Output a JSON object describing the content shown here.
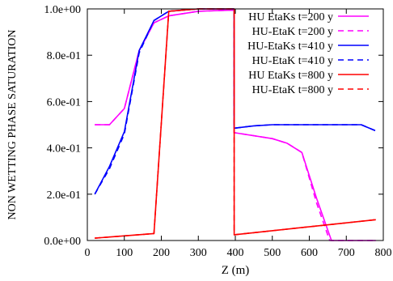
{
  "chart_data": {
    "type": "line",
    "xlabel": "Z (m)",
    "ylabel": "NON WETTING PHASE SATURATION",
    "xlim": [
      0,
      800
    ],
    "ylim": [
      0,
      1
    ],
    "xticks": [
      0,
      100,
      200,
      300,
      400,
      500,
      600,
      700,
      800
    ],
    "xtick_labels": [
      "0",
      "100",
      "200",
      "300",
      "400",
      "500",
      "600",
      "700",
      "800"
    ],
    "yticks": [
      0,
      0.2,
      0.4,
      0.6,
      0.8,
      1.0
    ],
    "ytick_labels": [
      "0.0e+00",
      "2.0e-01",
      "4.0e-01",
      "6.0e-01",
      "8.0e-01",
      "1.0e+00"
    ],
    "grid": false,
    "legend_position": "top-right",
    "series": [
      {
        "name": "HU EtaKs t=200 y",
        "color": "#ff00ff",
        "dash": "solid",
        "x": [
          20,
          60,
          100,
          140,
          180,
          220,
          300,
          397,
          397,
          400,
          500,
          540,
          580,
          620,
          660,
          780
        ],
        "y": [
          0.5,
          0.5,
          0.57,
          0.82,
          0.94,
          0.97,
          0.99,
          0.995,
          0.465,
          0.465,
          0.44,
          0.42,
          0.38,
          0.18,
          0.0,
          0.0
        ]
      },
      {
        "name": "HU-EtaK t=200 y",
        "color": "#ff00ff",
        "dash": "dashed",
        "x": [
          20,
          60,
          100,
          140,
          180,
          220,
          300,
          397,
          397,
          400,
          500,
          540,
          580,
          620,
          655,
          780
        ],
        "y": [
          0.5,
          0.5,
          0.57,
          0.82,
          0.94,
          0.97,
          0.99,
          0.995,
          0.465,
          0.465,
          0.44,
          0.42,
          0.38,
          0.16,
          0.0,
          0.0
        ]
      },
      {
        "name": "HU-EtaKs t=410 y",
        "color": "#0000ff",
        "dash": "solid",
        "x": [
          20,
          60,
          100,
          140,
          180,
          220,
          300,
          397,
          397,
          450,
          500,
          600,
          700,
          740,
          778
        ],
        "y": [
          0.2,
          0.32,
          0.47,
          0.82,
          0.95,
          0.99,
          1.0,
          1.0,
          0.485,
          0.495,
          0.5,
          0.5,
          0.5,
          0.5,
          0.475
        ]
      },
      {
        "name": "HU-EtaK t=410 y",
        "color": "#0000ff",
        "dash": "dashed",
        "x": [
          20,
          60,
          100,
          140,
          180,
          220,
          300,
          397,
          397,
          450,
          500,
          600,
          700,
          740,
          778
        ],
        "y": [
          0.2,
          0.31,
          0.46,
          0.81,
          0.95,
          0.99,
          1.0,
          1.0,
          0.485,
          0.495,
          0.5,
          0.5,
          0.5,
          0.5,
          0.475
        ]
      },
      {
        "name": "HU EtaKs t=800 y",
        "color": "#ff0000",
        "dash": "solid",
        "x": [
          20,
          180,
          220,
          300,
          397,
          397,
          780
        ],
        "y": [
          0.01,
          0.03,
          0.99,
          1.0,
          1.0,
          0.025,
          0.09
        ]
      },
      {
        "name": "HU-EtaK t=800 y",
        "color": "#ff0000",
        "dash": "dashed",
        "x": [
          20,
          180,
          220,
          300,
          397,
          397,
          780
        ],
        "y": [
          0.01,
          0.03,
          0.99,
          1.0,
          1.0,
          0.025,
          0.09
        ]
      }
    ]
  }
}
